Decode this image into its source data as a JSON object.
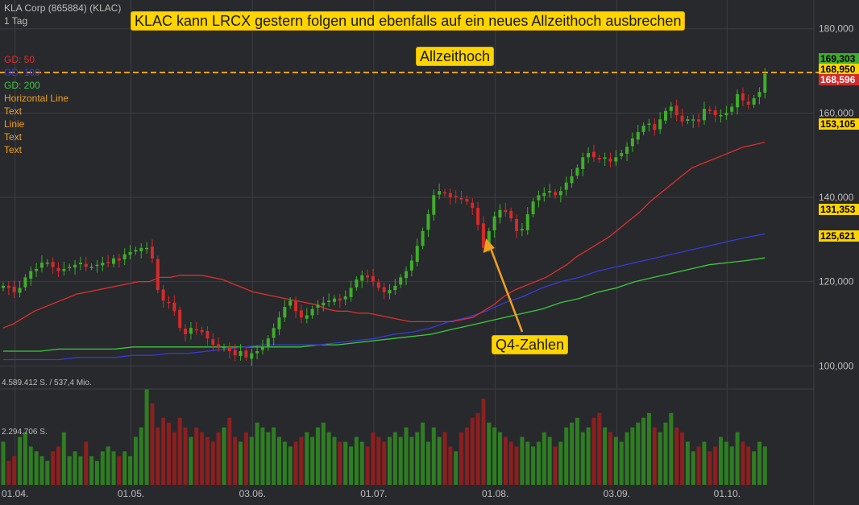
{
  "header": {
    "instrument": "KLA Corp (865884) (KLAC)",
    "timeframe": "1 Tag",
    "legend": [
      {
        "label": "GD: 50",
        "color": "#e0302c"
      },
      {
        "label": "GD: 100",
        "color": "#3a3ad8"
      },
      {
        "label": "GD: 200",
        "color": "#3ec93e"
      },
      {
        "label": "Horizontal Line",
        "color": "#f0a020"
      },
      {
        "label": "Text",
        "color": "#f0a020"
      },
      {
        "label": "Linie",
        "color": "#f0a020"
      },
      {
        "label": "Text",
        "color": "#f0a020"
      },
      {
        "label": "Text",
        "color": "#f0a020"
      }
    ]
  },
  "annotations": {
    "headline": "KLAC kann LRCX gestern folgen und ebenfalls auf ein neues Allzeithoch ausbrechen",
    "ath_label": "Allzeithoch",
    "earnings_label": "Q4-Zahlen"
  },
  "price_tags": {
    "close": "169,303",
    "ath_level": "168,950",
    "prev": "168,596",
    "sma50": "153,105",
    "sma100": "131,353",
    "sma200": "125,621"
  },
  "volume_labels": {
    "max": "4.589.412 S. / 537,4 Mio.",
    "mid": "2.294.706 S."
  },
  "colors": {
    "up": "#3fae2a",
    "down": "#d42a2a",
    "sma50": "#e0302c",
    "sma100": "#3a3ad8",
    "sma200": "#3ec93e",
    "hline": "#f0a020",
    "bg": "#27292d",
    "grid": "#3c3e43",
    "text": "#bdbdbd"
  },
  "chart_data": {
    "type": "candlestick",
    "title": "KLAC kann LRCX gestern folgen und ebenfalls auf ein neues Allzeithoch ausbrechen",
    "x_tick_labels": [
      "01.04.",
      "01.05.",
      "03.06.",
      "01.07.",
      "01.08.",
      "03.09.",
      "01.10."
    ],
    "x_tick_index": [
      2,
      23,
      45,
      67,
      89,
      111,
      131
    ],
    "y_tick_labels": [
      "100,000",
      "120,000",
      "140,000",
      "160,000",
      "180,000"
    ],
    "y_ticks": [
      100,
      120,
      140,
      160,
      180
    ],
    "ylim": [
      97,
      183
    ],
    "horizontal_line": 168.95,
    "closes": [
      119,
      118.5,
      117.5,
      118.5,
      121,
      122.5,
      123,
      124.5,
      124.5,
      123.5,
      122.5,
      123,
      123.5,
      124,
      124.5,
      123.5,
      123.5,
      124,
      124.5,
      124.5,
      125.5,
      125,
      126.5,
      127,
      127.5,
      128,
      128,
      125.5,
      118,
      115.5,
      115,
      113,
      109,
      107.5,
      109,
      108.5,
      108,
      106.5,
      105,
      104.5,
      104.5,
      103.5,
      102.5,
      103.5,
      102,
      103,
      103.5,
      104.5,
      106.5,
      109,
      111.5,
      114,
      115.5,
      113,
      111.5,
      112,
      113.5,
      114.5,
      115,
      115.5,
      116,
      115.5,
      116.5,
      118.5,
      120.5,
      121.5,
      121,
      120,
      118.5,
      117.5,
      118,
      119,
      121,
      122.5,
      125,
      128.5,
      132,
      136,
      140.5,
      141.5,
      141,
      140,
      140,
      139.5,
      139,
      137.5,
      133.5,
      128,
      132,
      135.5,
      137,
      136.5,
      135,
      132,
      132.5,
      136,
      139,
      140.5,
      141,
      141.5,
      140.5,
      141.5,
      143.5,
      145,
      147,
      149.5,
      150.5,
      149.5,
      149,
      149.5,
      148.5,
      149.5,
      150.5,
      152,
      154,
      155.5,
      157,
      157.5,
      156,
      158.5,
      160.5,
      161.5,
      159.5,
      158,
      158.5,
      158.5,
      158,
      161,
      160.5,
      159.5,
      159.5,
      160,
      161.5,
      164.5,
      163,
      162,
      163.5,
      165,
      169.3
    ],
    "sma50": [
      109,
      110,
      111.5,
      113,
      114,
      115,
      116,
      117,
      117.5,
      118,
      118.5,
      119,
      119.5,
      120,
      120,
      121,
      121,
      121.5,
      121.5,
      121.5,
      121,
      120.5,
      119.5,
      118.5,
      117.5,
      117,
      116.5,
      116,
      115.5,
      115,
      114.5,
      113.5,
      113,
      113,
      112.5,
      112.5,
      112,
      111.5,
      111,
      110.5,
      110.5,
      110.5,
      110.5,
      110.5,
      111,
      111.5,
      113,
      114.5,
      116.5,
      118,
      119,
      120,
      121,
      122.5,
      124,
      126,
      127.5,
      129,
      130.5,
      132.5,
      134.5,
      136.5,
      139,
      141,
      143,
      145,
      147,
      148,
      149,
      150,
      151,
      152,
      152.5,
      153.1
    ],
    "sma50_start": 0,
    "sma100": [
      101.5,
      101.5,
      101.5,
      101.5,
      102,
      102,
      102,
      102.5,
      102.5,
      103,
      103,
      103.5,
      104,
      104.5,
      105,
      105,
      105,
      105,
      105.5,
      106,
      106.5,
      107.5,
      108,
      109,
      110.5,
      111.5,
      113,
      115,
      116.5,
      118.5,
      120,
      121,
      122.5,
      123.5,
      124.5,
      125.5,
      126.5,
      127.5,
      128.5,
      129.5,
      130.5,
      131.35
    ],
    "sma200": [
      103.5,
      103.5,
      103.5,
      104,
      104,
      104,
      104,
      104.5,
      104.5,
      104.5,
      104.5,
      104.5,
      104.5,
      104.5,
      104.5,
      104.5,
      104.5,
      105,
      105,
      105.5,
      106,
      106.5,
      107,
      107.5,
      108.5,
      109.5,
      110.5,
      111.5,
      112.5,
      113.5,
      115,
      116,
      117.5,
      118.5,
      120,
      121,
      122,
      123,
      124,
      124.5,
      125,
      125.62
    ],
    "volume": [
      0.45,
      0.25,
      0.3,
      0.5,
      0.55,
      0.4,
      0.35,
      0.3,
      0.25,
      0.35,
      0.4,
      0.55,
      0.3,
      0.35,
      0.3,
      0.45,
      0.3,
      0.25,
      0.35,
      0.4,
      0.35,
      0.3,
      0.35,
      0.3,
      0.5,
      0.6,
      1.0,
      0.85,
      0.6,
      0.7,
      0.65,
      0.55,
      0.7,
      0.6,
      0.5,
      0.6,
      0.55,
      0.5,
      0.45,
      0.55,
      0.6,
      0.7,
      0.5,
      0.45,
      0.55,
      0.5,
      0.65,
      0.6,
      0.55,
      0.6,
      0.5,
      0.45,
      0.4,
      0.45,
      0.5,
      0.55,
      0.5,
      0.6,
      0.65,
      0.55,
      0.5,
      0.45,
      0.45,
      0.4,
      0.5,
      0.45,
      0.4,
      0.55,
      0.5,
      0.45,
      0.5,
      0.55,
      0.5,
      0.6,
      0.5,
      0.55,
      0.65,
      0.45,
      0.6,
      0.5,
      0.55,
      0.4,
      0.35,
      0.55,
      0.6,
      0.7,
      0.75,
      0.9,
      0.65,
      0.6,
      0.55,
      0.5,
      0.45,
      0.4,
      0.5,
      0.45,
      0.4,
      0.45,
      0.55,
      0.5,
      0.4,
      0.45,
      0.6,
      0.65,
      0.7,
      0.55,
      0.6,
      0.7,
      0.75,
      0.6,
      0.55,
      0.5,
      0.45,
      0.55,
      0.6,
      0.65,
      0.7,
      0.75,
      0.6,
      0.55,
      0.65,
      0.75,
      0.6,
      0.55,
      0.45,
      0.35,
      0.4,
      0.45,
      0.35,
      0.4,
      0.5,
      0.45,
      0.4,
      0.55,
      0.45,
      0.4,
      0.35,
      0.45,
      0.4,
      0.55,
      0.45,
      0.35,
      0.5
    ],
    "ylabel": "",
    "xlabel": ""
  }
}
